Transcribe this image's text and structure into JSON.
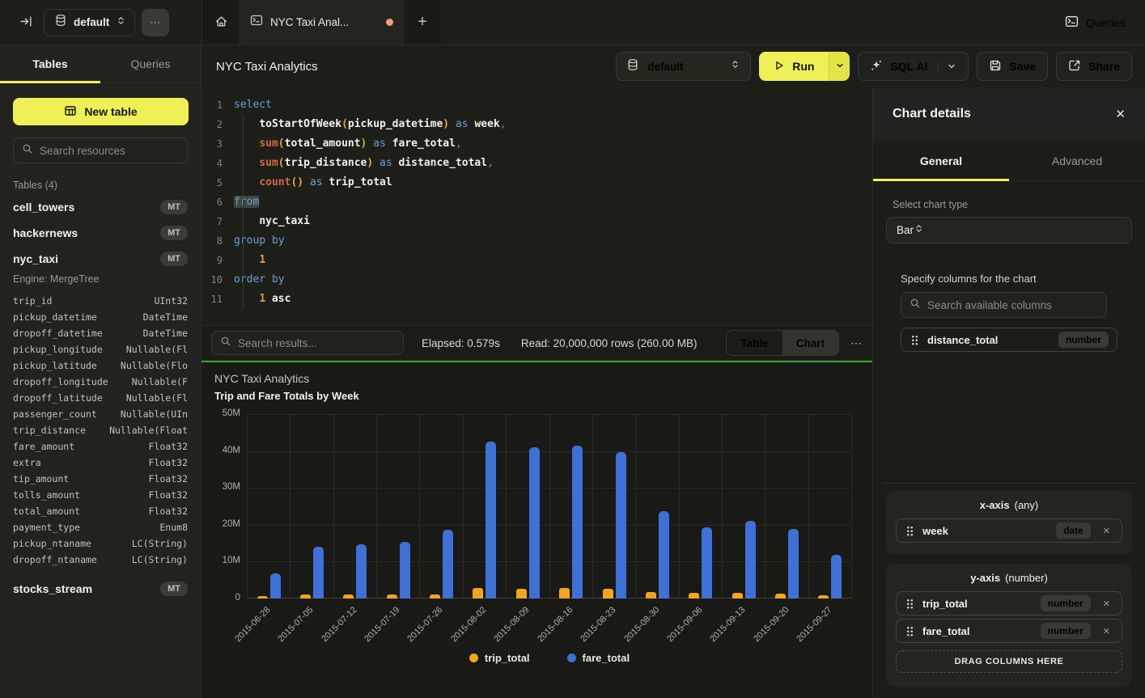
{
  "colors": {
    "accent_yellow": "#eff056",
    "bar_blue": "#3e70d7",
    "bar_yellow": "#f2a51c",
    "chart_border_green": "#3da233",
    "tab_dot_orange": "#efa27b"
  },
  "icons": {
    "ellipsis": "⋯",
    "plus": "+",
    "close": "✕",
    "chip_remove": "✕"
  },
  "topbar": {
    "database": "default",
    "tab_title": "NYC Taxi Anal...",
    "queries_label": "Queries"
  },
  "sidebar": {
    "tabs": [
      {
        "label": "Tables",
        "active": true
      },
      {
        "label": "Queries",
        "active": false
      }
    ],
    "new_table_label": "New table",
    "search_placeholder": "Search resources",
    "section_header": "Tables (4)",
    "tables": [
      {
        "name": "cell_towers",
        "badge": "MT"
      },
      {
        "name": "hackernews",
        "badge": "MT"
      },
      {
        "name": "nyc_taxi",
        "badge": "MT",
        "engine": "Engine: MergeTree",
        "columns": [
          [
            "trip_id",
            "UInt32"
          ],
          [
            "pickup_datetime",
            "DateTime"
          ],
          [
            "dropoff_datetime",
            "DateTime"
          ],
          [
            "pickup_longitude",
            "Nullable(Fl"
          ],
          [
            "pickup_latitude",
            "Nullable(Flo"
          ],
          [
            "dropoff_longitude",
            "Nullable(F"
          ],
          [
            "dropoff_latitude",
            "Nullable(Fl"
          ],
          [
            "passenger_count",
            "Nullable(UIn"
          ],
          [
            "trip_distance",
            "Nullable(Float"
          ],
          [
            "fare_amount",
            "Float32"
          ],
          [
            "extra",
            "Float32"
          ],
          [
            "tip_amount",
            "Float32"
          ],
          [
            "tolls_amount",
            "Float32"
          ],
          [
            "total_amount",
            "Float32"
          ],
          [
            "payment_type",
            "Enum8"
          ],
          [
            "pickup_ntaname",
            "LC(String)"
          ],
          [
            "dropoff_ntaname",
            "LC(String)"
          ]
        ]
      },
      {
        "name": "stocks_stream",
        "badge": "MT"
      }
    ]
  },
  "editor": {
    "title": "NYC Taxi Analytics",
    "database": "default",
    "run_label": "Run",
    "sql_ai_label": "SQL AI",
    "save_label": "Save",
    "share_label": "Share",
    "sql_lines": [
      [
        [
          "kw",
          "select"
        ]
      ],
      [
        [
          "ws",
          "    "
        ],
        [
          "fn",
          "toStartOfWeek"
        ],
        [
          "br",
          "("
        ],
        [
          "id",
          "pickup_datetime"
        ],
        [
          "br",
          ")"
        ],
        [
          "ws",
          " "
        ],
        [
          "kw",
          "as"
        ],
        [
          "ws",
          " "
        ],
        [
          "id",
          "week"
        ],
        [
          "pu",
          ","
        ]
      ],
      [
        [
          "ws",
          "    "
        ],
        [
          "ag",
          "sum"
        ],
        [
          "br",
          "("
        ],
        [
          "id",
          "total_amount"
        ],
        [
          "br",
          ")"
        ],
        [
          "ws",
          " "
        ],
        [
          "kw",
          "as"
        ],
        [
          "ws",
          " "
        ],
        [
          "id",
          "fare_total"
        ],
        [
          "pu",
          ","
        ]
      ],
      [
        [
          "ws",
          "    "
        ],
        [
          "ag",
          "sum"
        ],
        [
          "br",
          "("
        ],
        [
          "id",
          "trip_distance"
        ],
        [
          "br",
          ")"
        ],
        [
          "ws",
          " "
        ],
        [
          "kw",
          "as"
        ],
        [
          "ws",
          " "
        ],
        [
          "id",
          "distance_total"
        ],
        [
          "pu",
          ","
        ]
      ],
      [
        [
          "ws",
          "    "
        ],
        [
          "ag",
          "count"
        ],
        [
          "br",
          "()"
        ],
        [
          "ws",
          " "
        ],
        [
          "kw",
          "as"
        ],
        [
          "ws",
          " "
        ],
        [
          "id",
          "trip_total"
        ]
      ],
      [
        [
          "sel",
          "from"
        ]
      ],
      [
        [
          "ws",
          "    "
        ],
        [
          "id",
          "nyc_taxi"
        ]
      ],
      [
        [
          "kw",
          "group by"
        ]
      ],
      [
        [
          "ws",
          "    "
        ],
        [
          "nu",
          "1"
        ]
      ],
      [
        [
          "kw",
          "order by"
        ]
      ],
      [
        [
          "ws",
          "    "
        ],
        [
          "nu",
          "1"
        ],
        [
          "ws",
          " "
        ],
        [
          "id",
          "asc"
        ]
      ]
    ]
  },
  "results": {
    "search_placeholder": "Search results...",
    "elapsed": "Elapsed: 0.579s",
    "read": "Read: 20,000,000 rows (260.00 MB)",
    "views": [
      {
        "label": "Table",
        "active": false
      },
      {
        "label": "Chart",
        "active": true
      }
    ]
  },
  "chart_data": {
    "type": "bar",
    "title": "NYC Taxi Analytics",
    "subtitle": "Trip and Fare Totals by Week",
    "categories": [
      "2015-06-28",
      "2015-07-05",
      "2015-07-12",
      "2015-07-19",
      "2015-07-26",
      "2015-08-02",
      "2015-08-09",
      "2015-08-16",
      "2015-08-23",
      "2015-08-30",
      "2015-09-06",
      "2015-09-13",
      "2015-09-20",
      "2015-09-27"
    ],
    "series": [
      {
        "name": "trip_total",
        "color": "#f2a51c",
        "values_millions": [
          0.6,
          1.0,
          1.0,
          1.0,
          1.2,
          2.8,
          2.7,
          2.9,
          2.7,
          1.8,
          1.5,
          1.5,
          1.4,
          0.8
        ]
      },
      {
        "name": "fare_total",
        "color": "#3e70d7",
        "values_millions": [
          6.9,
          14.0,
          14.8,
          15.3,
          18.7,
          42.5,
          41.1,
          41.5,
          39.6,
          23.7,
          19.3,
          21.0,
          18.8,
          11.8
        ]
      }
    ],
    "unit": "M",
    "ylim": [
      0,
      50
    ],
    "yticks": [
      {
        "label": "50M",
        "value": 50
      },
      {
        "label": "40M",
        "value": 40
      },
      {
        "label": "30M",
        "value": 30
      },
      {
        "label": "20M",
        "value": 20
      },
      {
        "label": "10M",
        "value": 10
      },
      {
        "label": "0",
        "value": 0
      }
    ],
    "grid": true,
    "legend_position": "bottom"
  },
  "chart_panel": {
    "title": "Chart details",
    "tabs": [
      {
        "label": "General",
        "active": true
      },
      {
        "label": "Advanced",
        "active": false
      }
    ],
    "chart_type_label": "Select chart type",
    "chart_type_value": "Bar",
    "columns_label": "Specify columns for the chart",
    "columns_search_placeholder": "Search available columns",
    "available_columns": [
      {
        "name": "distance_total",
        "type": "number"
      }
    ],
    "x_axis": {
      "title": "x-axis",
      "hint": "(any)",
      "items": [
        {
          "name": "week",
          "type": "date"
        }
      ]
    },
    "y_axis": {
      "title": "y-axis",
      "hint": "(number)",
      "items": [
        {
          "name": "trip_total",
          "type": "number"
        },
        {
          "name": "fare_total",
          "type": "number"
        }
      ]
    },
    "drop_label": "DRAG COLUMNS HERE"
  }
}
